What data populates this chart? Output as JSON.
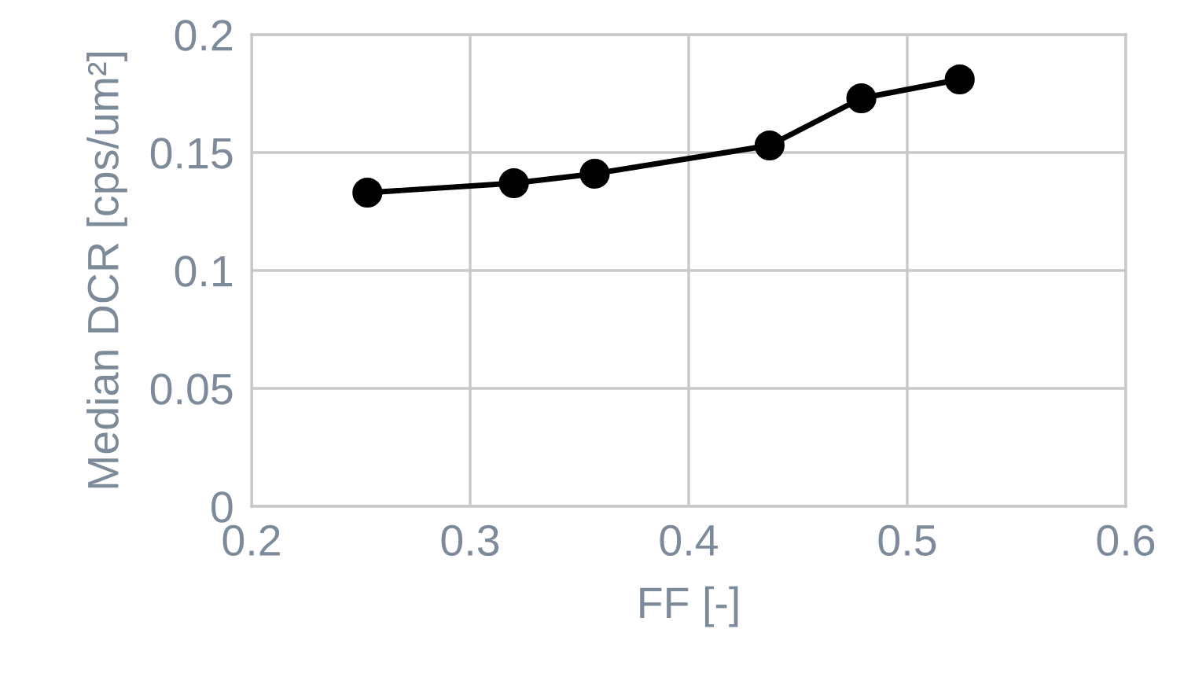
{
  "chart_data": {
    "type": "line",
    "xlabel": "FF [-]",
    "ylabel": "Median DCR [cps/um²]",
    "x": [
      0.253,
      0.32,
      0.357,
      0.437,
      0.479,
      0.524
    ],
    "series": [
      {
        "color": "#000000",
        "values": [
          0.133,
          0.137,
          0.141,
          0.153,
          0.173,
          0.181
        ]
      }
    ],
    "xlim": [
      0.2,
      0.6
    ],
    "xticks": [
      0.2,
      0.3,
      0.4,
      0.5,
      0.6
    ],
    "ylim": [
      0,
      0.2
    ],
    "yticks": [
      0,
      0.05,
      0.1,
      0.15,
      0.2
    ],
    "grid": true,
    "marker": "circle",
    "line_style": "solid",
    "legend": false
  }
}
